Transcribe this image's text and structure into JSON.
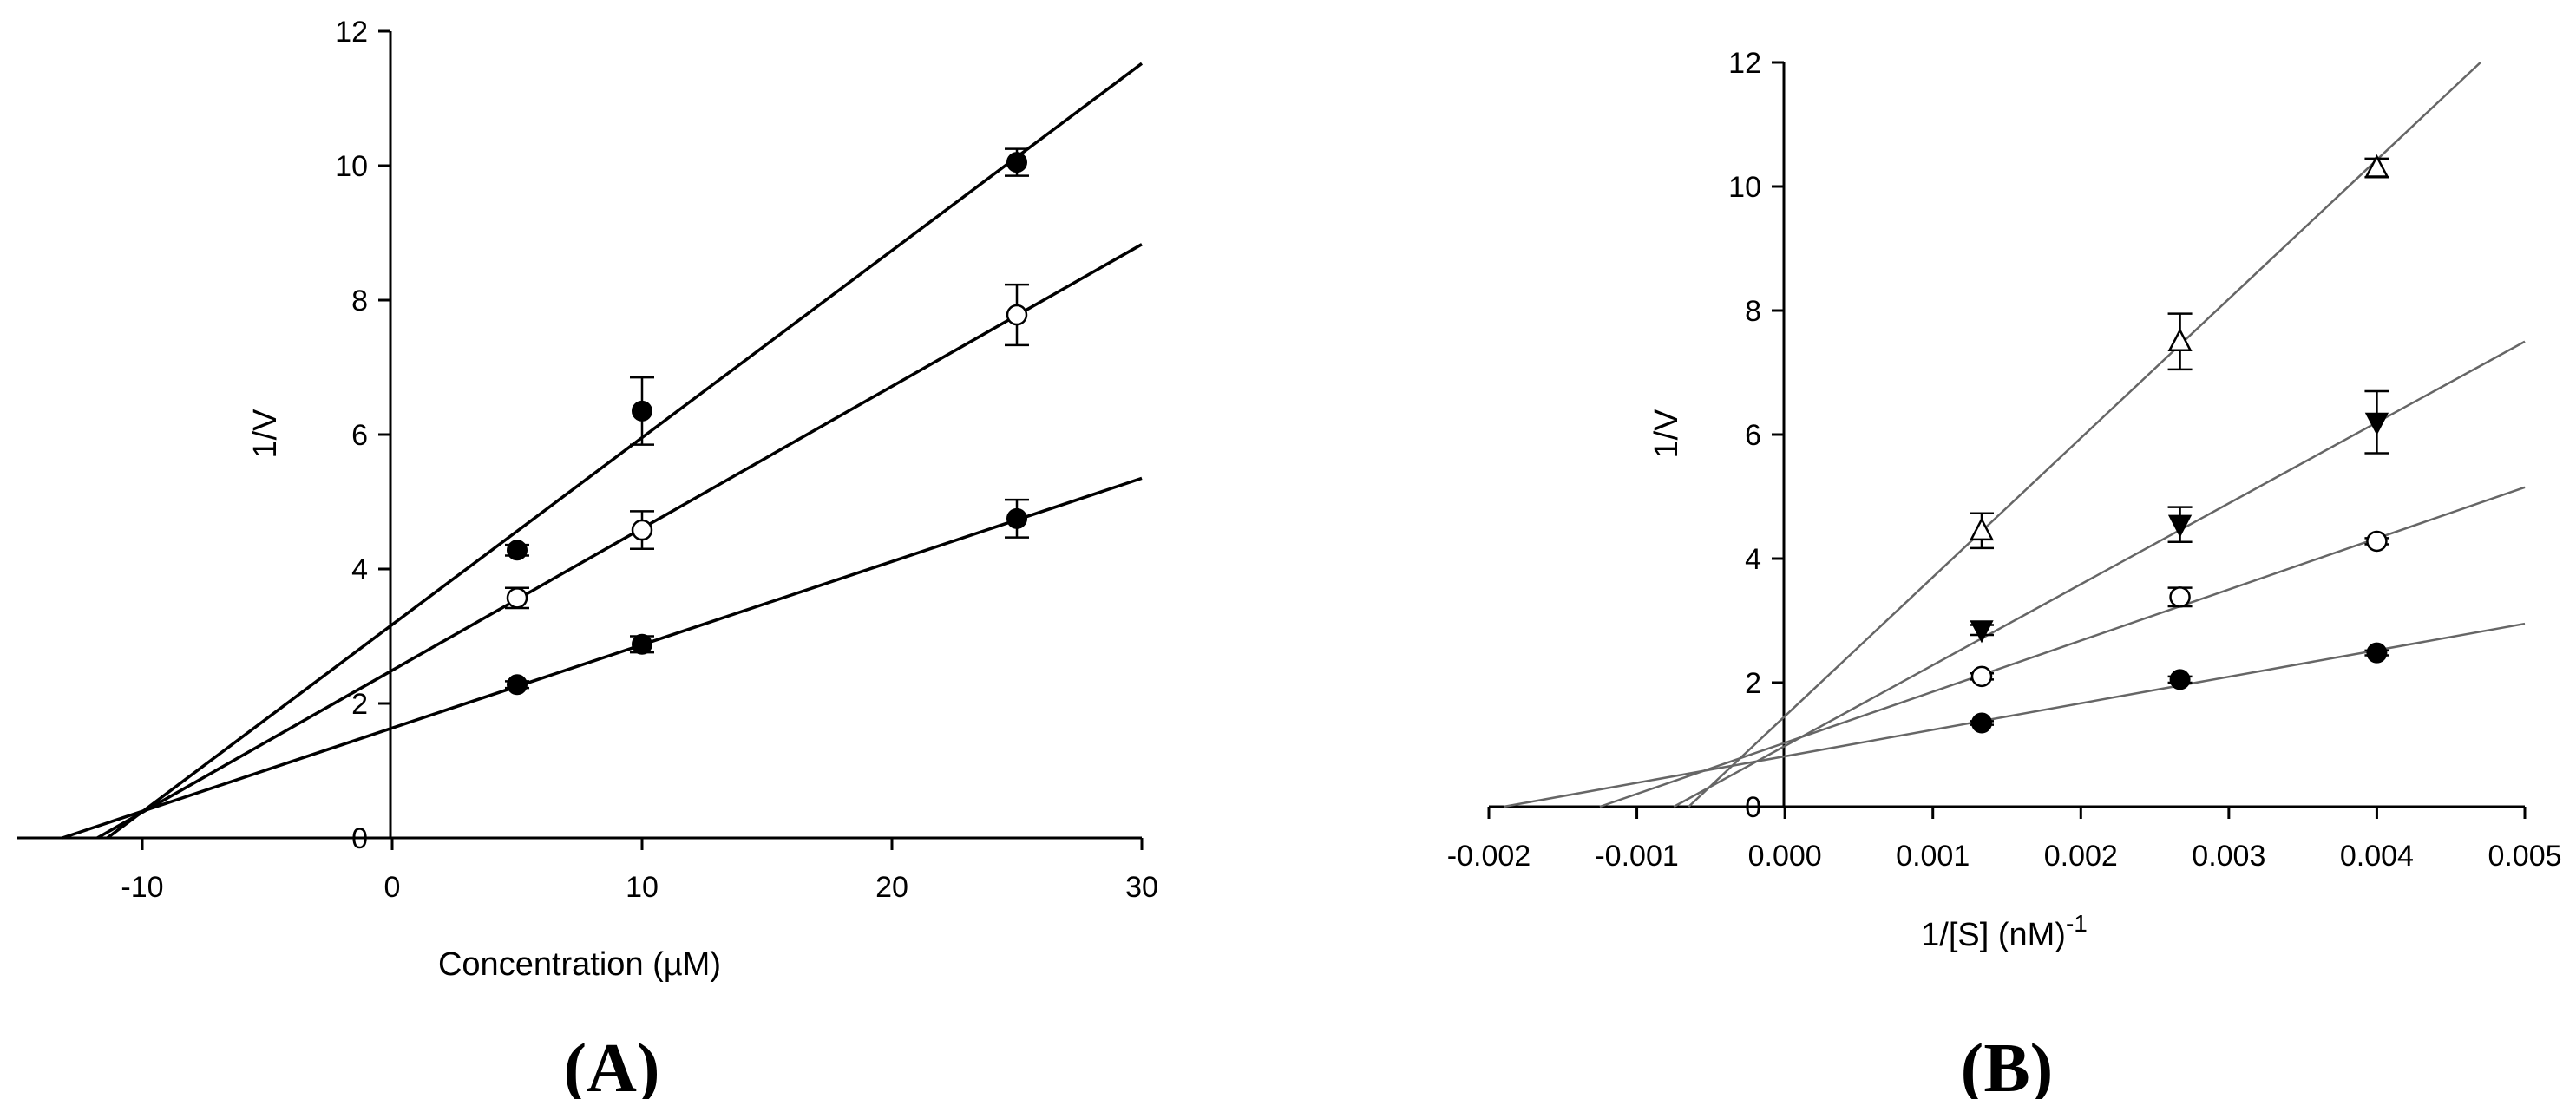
{
  "chart_data": [
    {
      "type": "scatter",
      "panel_label": "(A)",
      "xlabel": "Concentration (µM)",
      "ylabel": "1/V",
      "xlim": [
        -15,
        30
      ],
      "ylim": [
        0,
        12
      ],
      "x_ticks": [
        -10,
        0,
        10,
        20,
        30
      ],
      "y_ticks": [
        0,
        2,
        4,
        6,
        8,
        10,
        12
      ],
      "grid": false,
      "legend": "none",
      "series": [
        {
          "marker": "filled-circle",
          "x": [
            5,
            10,
            25
          ],
          "y": [
            4.28,
            6.35,
            10.05
          ],
          "err": [
            0.08,
            0.5,
            0.2
          ],
          "fit": {
            "x": [
              -11.4,
              30
            ],
            "y": [
              0.0,
              11.52
            ]
          }
        },
        {
          "marker": "open-circle",
          "x": [
            5,
            10,
            25
          ],
          "y": [
            3.57,
            4.58,
            7.78
          ],
          "err": [
            0.15,
            0.28,
            0.45
          ],
          "fit": {
            "x": [
              -11.8,
              30
            ],
            "y": [
              0.0,
              8.83
            ]
          }
        },
        {
          "marker": "filled-circle",
          "x": [
            5,
            10,
            25
          ],
          "y": [
            2.28,
            2.88,
            4.75
          ],
          "err": [
            0.05,
            0.12,
            0.28
          ],
          "fit": {
            "x": [
              -13.2,
              30
            ],
            "y": [
              0.0,
              5.35
            ]
          }
        }
      ]
    },
    {
      "type": "scatter",
      "panel_label": "(B)",
      "xlabel": "1/[S] (nM)",
      "xlabel_sup": "-1",
      "ylabel": "1/V",
      "xlim": [
        -0.002,
        0.005
      ],
      "ylim": [
        0,
        12
      ],
      "x_ticks": [
        -0.002,
        -0.001,
        0.0,
        0.001,
        0.002,
        0.003,
        0.004,
        0.005
      ],
      "x_tick_labels": [
        "-0.002",
        "-0.001",
        "0.000",
        "0.001",
        "0.002",
        "0.003",
        "0.004",
        "0.005"
      ],
      "y_ticks": [
        0,
        2,
        4,
        6,
        8,
        10,
        12
      ],
      "grid": false,
      "legend": "none",
      "series": [
        {
          "marker": "open-triangle-up",
          "x": [
            0.00133,
            0.00267,
            0.004
          ],
          "y": [
            4.45,
            7.5,
            10.3
          ],
          "err": [
            0.28,
            0.45,
            0.15
          ],
          "fit": {
            "x": [
              -0.00065,
              0.0047
            ],
            "y": [
              0.0,
              12.0
            ]
          }
        },
        {
          "marker": "filled-triangle-down",
          "x": [
            0.00133,
            0.00267,
            0.004
          ],
          "y": [
            2.85,
            4.55,
            6.2
          ],
          "err": [
            0.08,
            0.28,
            0.5
          ],
          "fit": {
            "x": [
              -0.00075,
              0.005
            ],
            "y": [
              0.0,
              7.5
            ]
          }
        },
        {
          "marker": "open-circle",
          "x": [
            0.00133,
            0.00267,
            0.004
          ],
          "y": [
            2.1,
            3.38,
            4.28
          ],
          "err": [
            0.05,
            0.15,
            0.05
          ],
          "fit": {
            "x": [
              -0.00125,
              0.005
            ],
            "y": [
              0.0,
              5.15
            ]
          }
        },
        {
          "marker": "filled-circle",
          "x": [
            0.00133,
            0.00267,
            0.004
          ],
          "y": [
            1.35,
            2.05,
            2.48
          ],
          "err": [
            0.03,
            0.05,
            0.04
          ],
          "fit": {
            "x": [
              -0.0019,
              0.005
            ],
            "y": [
              0.0,
              2.95
            ]
          }
        }
      ]
    }
  ]
}
